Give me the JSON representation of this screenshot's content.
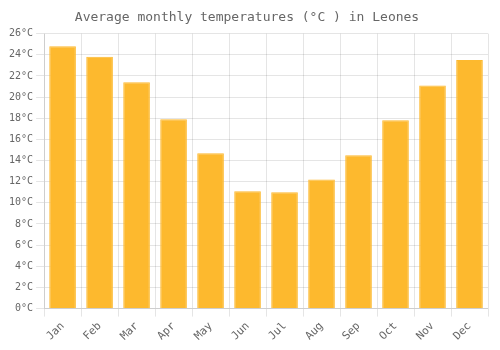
{
  "chart_data": {
    "type": "bar",
    "title": "Average monthly temperatures (°C ) in Leones",
    "categories": [
      "Jan",
      "Feb",
      "Mar",
      "Apr",
      "May",
      "Jun",
      "Jul",
      "Aug",
      "Sep",
      "Oct",
      "Nov",
      "Dec"
    ],
    "values": [
      24.8,
      23.8,
      21.4,
      17.9,
      14.7,
      11.1,
      11.0,
      12.2,
      14.5,
      17.8,
      21.1,
      23.5
    ],
    "color": "#FDB92E",
    "ylim": [
      0,
      26
    ],
    "yticks": [
      {
        "value": 0,
        "label": "0°C"
      },
      {
        "value": 2,
        "label": "2°C"
      },
      {
        "value": 4,
        "label": "4°C"
      },
      {
        "value": 6,
        "label": "6°C"
      },
      {
        "value": 8,
        "label": "8°C"
      },
      {
        "value": 10,
        "label": "10°C"
      },
      {
        "value": 12,
        "label": "12°C"
      },
      {
        "value": 14,
        "label": "14°C"
      },
      {
        "value": 16,
        "label": "16°C"
      },
      {
        "value": 18,
        "label": "18°C"
      },
      {
        "value": 20,
        "label": "20°C"
      },
      {
        "value": 22,
        "label": "22°C"
      },
      {
        "value": 24,
        "label": "24°C"
      },
      {
        "value": 26,
        "label": "26°C"
      }
    ],
    "grid": true
  }
}
